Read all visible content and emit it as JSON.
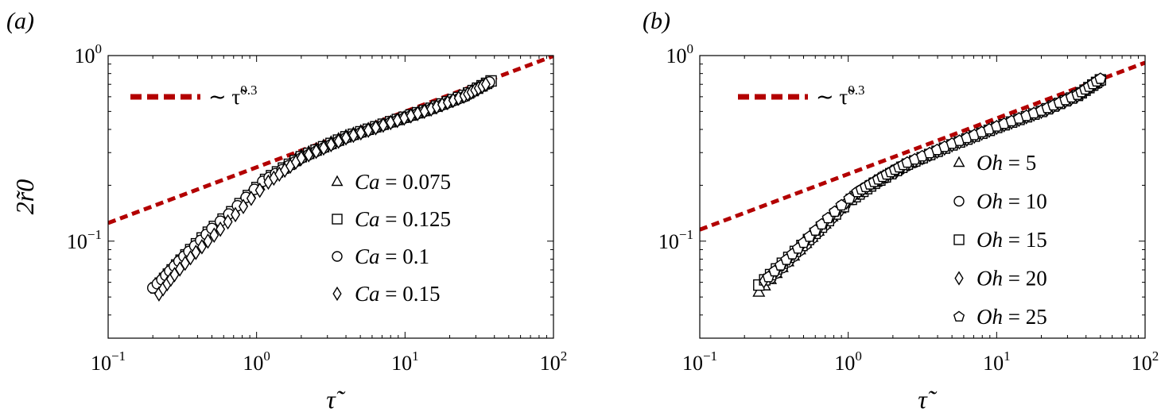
{
  "chart_data": [
    {
      "panel_label": "(a)",
      "type": "scatter",
      "xscale": "log",
      "yscale": "log",
      "xlim": [
        0.1,
        100
      ],
      "ylim": [
        0.03,
        1
      ],
      "xlabel": "τ̃",
      "ylabel": "2r̃0",
      "x_ticks": [
        {
          "base": "10",
          "exp": "−1"
        },
        {
          "base": "10",
          "exp": "0"
        },
        {
          "base": "10",
          "exp": "1"
        },
        {
          "base": "10",
          "exp": "2"
        }
      ],
      "y_ticks": [
        {
          "base": "10",
          "exp": "−1"
        },
        {
          "base": "10",
          "exp": "0"
        }
      ],
      "fit_line": {
        "label": "∼ τ̃",
        "exponent_label": "0.3",
        "coefficient": 0.25,
        "exponent": 0.3,
        "color": "#b30000"
      },
      "legend_position": "center-right",
      "series": [
        {
          "var": "Ca",
          "value": "0.075",
          "marker": "triangle",
          "x": [
            0.22,
            0.25,
            0.28,
            0.32,
            0.38,
            0.45,
            0.55,
            0.7,
            0.9,
            1.2,
            2,
            4,
            8,
            15,
            25,
            36
          ],
          "y": [
            0.057,
            0.066,
            0.074,
            0.083,
            0.095,
            0.108,
            0.124,
            0.148,
            0.18,
            0.22,
            0.29,
            0.37,
            0.44,
            0.52,
            0.61,
            0.71
          ]
        },
        {
          "var": "Ca",
          "value": "0.125",
          "marker": "square",
          "x": [
            0.21,
            0.24,
            0.27,
            0.31,
            0.36,
            0.43,
            0.52,
            0.68,
            0.88,
            1.15,
            2,
            4,
            8,
            15,
            25,
            38
          ],
          "y": [
            0.056,
            0.063,
            0.07,
            0.079,
            0.09,
            0.104,
            0.12,
            0.144,
            0.176,
            0.215,
            0.285,
            0.365,
            0.44,
            0.52,
            0.61,
            0.73
          ]
        },
        {
          "var": "Ca",
          "value": "0.1",
          "marker": "circle",
          "x": [
            0.2,
            0.23,
            0.26,
            0.3,
            0.35,
            0.42,
            0.5,
            0.65,
            0.85,
            1.1,
            2,
            4,
            8,
            15,
            25,
            37
          ],
          "y": [
            0.056,
            0.062,
            0.069,
            0.078,
            0.088,
            0.101,
            0.117,
            0.14,
            0.172,
            0.21,
            0.28,
            0.36,
            0.435,
            0.515,
            0.6,
            0.72
          ]
        },
        {
          "var": "Ca",
          "value": "0.15",
          "marker": "diamond",
          "x": [
            0.22,
            0.25,
            0.28,
            0.33,
            0.39,
            0.47,
            0.57,
            0.72,
            0.92,
            1.2,
            2,
            4,
            8,
            15,
            25,
            35
          ],
          "y": [
            0.052,
            0.059,
            0.066,
            0.076,
            0.087,
            0.1,
            0.116,
            0.139,
            0.17,
            0.208,
            0.28,
            0.36,
            0.435,
            0.515,
            0.605,
            0.7
          ]
        }
      ]
    },
    {
      "panel_label": "(b)",
      "type": "scatter",
      "xscale": "log",
      "yscale": "log",
      "xlim": [
        0.1,
        100
      ],
      "ylim": [
        0.03,
        1
      ],
      "xlabel": "τ̃",
      "ylabel": "",
      "x_ticks": [
        {
          "base": "10",
          "exp": "−1"
        },
        {
          "base": "10",
          "exp": "0"
        },
        {
          "base": "10",
          "exp": "1"
        },
        {
          "base": "10",
          "exp": "2"
        }
      ],
      "y_ticks": [
        {
          "base": "10",
          "exp": "−1"
        },
        {
          "base": "10",
          "exp": "0"
        }
      ],
      "fit_line": {
        "label": "∼ τ̃",
        "exponent_label": "0.3",
        "coefficient": 0.23,
        "exponent": 0.3,
        "color": "#b30000"
      },
      "legend_position": "center-right",
      "series": [
        {
          "var": "Oh",
          "value": "5",
          "marker": "triangle",
          "x": [
            0.25,
            0.3,
            0.36,
            0.43,
            0.52,
            0.63,
            0.78,
            1.0,
            1.4,
            2.5,
            5,
            10,
            20,
            35,
            48
          ],
          "y": [
            0.053,
            0.062,
            0.072,
            0.083,
            0.097,
            0.113,
            0.135,
            0.165,
            0.2,
            0.26,
            0.33,
            0.41,
            0.5,
            0.61,
            0.72
          ]
        },
        {
          "var": "Oh",
          "value": "10",
          "marker": "circle",
          "x": [
            0.3,
            0.36,
            0.43,
            0.52,
            0.63,
            0.77,
            0.95,
            1.3,
            2.5,
            5,
            10,
            20,
            35,
            50
          ],
          "y": [
            0.063,
            0.072,
            0.083,
            0.096,
            0.112,
            0.132,
            0.157,
            0.19,
            0.255,
            0.33,
            0.41,
            0.5,
            0.61,
            0.73
          ]
        },
        {
          "var": "Oh",
          "value": "15",
          "marker": "square",
          "x": [
            0.25,
            0.3,
            0.36,
            0.44,
            0.54,
            0.66,
            0.82,
            1.05,
            1.5,
            2.5,
            5,
            10,
            20,
            35,
            50
          ],
          "y": [
            0.058,
            0.066,
            0.076,
            0.088,
            0.102,
            0.119,
            0.14,
            0.168,
            0.205,
            0.26,
            0.33,
            0.41,
            0.5,
            0.61,
            0.74
          ]
        },
        {
          "var": "Oh",
          "value": "20",
          "marker": "diamond",
          "x": [
            0.27,
            0.33,
            0.4,
            0.48,
            0.58,
            0.7,
            0.86,
            1.1,
            1.6,
            2.5,
            5,
            10,
            20,
            35,
            49
          ],
          "y": [
            0.061,
            0.07,
            0.081,
            0.094,
            0.109,
            0.127,
            0.149,
            0.177,
            0.215,
            0.26,
            0.33,
            0.41,
            0.5,
            0.61,
            0.73
          ]
        },
        {
          "var": "Oh",
          "value": "25",
          "marker": "pentagon",
          "x": [
            0.29,
            0.35,
            0.42,
            0.5,
            0.6,
            0.73,
            0.9,
            1.15,
            1.7,
            2.5,
            5,
            10,
            20,
            35,
            50
          ],
          "y": [
            0.064,
            0.074,
            0.085,
            0.098,
            0.114,
            0.133,
            0.156,
            0.184,
            0.222,
            0.265,
            0.335,
            0.415,
            0.505,
            0.615,
            0.75
          ]
        }
      ]
    }
  ]
}
